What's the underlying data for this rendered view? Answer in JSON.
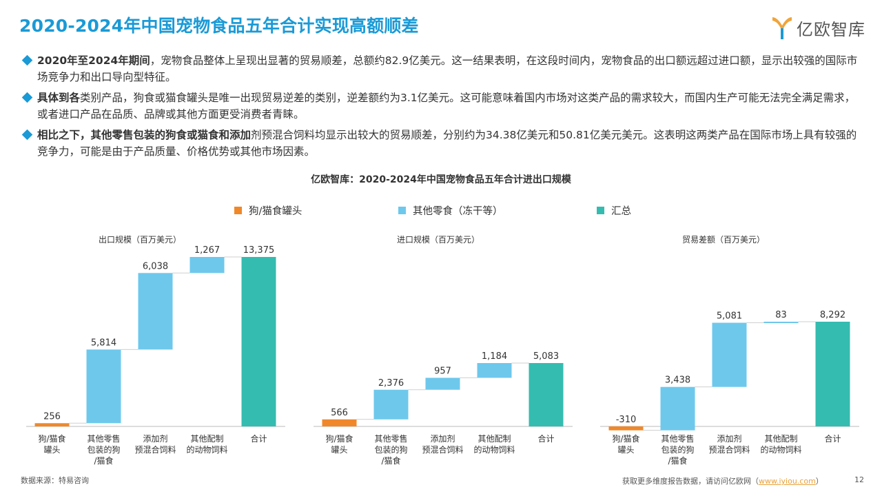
{
  "header": {
    "title": "2020-2024年中国宠物食品五年合计实现高额顺差"
  },
  "logo": {
    "text": "亿欧智库",
    "icon": "yiou-logo-icon"
  },
  "bullets": [
    {
      "bold": "2020年至2024年期间",
      "text": "，宠物食品整体上呈现出显著的贸易顺差，总额约82.9亿美元。这一结果表明，在这段时间内，宠物食品的出口额远超过进口额，显示出较强的国际市场竞争力和出口导向型特征。"
    },
    {
      "bold": "具体到各",
      "text": "类别产品，狗食或猫食罐头是唯一出现贸易逆差的类别，逆差额约为3.1亿美元。这可能意味着国内市场对这类产品的需求较大，而国内生产可能无法完全满足需求，或者进口产品在品质、品牌或其他方面更受消费者青睐。"
    },
    {
      "bold": "相比之下，其他零售包装的狗食或猫食和添加",
      "text": "剂预混合饲料均显示出较大的贸易顺差，分别约为34.38亿美元和50.81亿美元美元。这表明这两类产品在国际市场上具有较强的竞争力，可能是由于产品质量、价格优势或其他市场因素。"
    }
  ],
  "chart_title": "亿欧智库：2020-2024年中国宠物食品五年合计进出口规模",
  "legend": [
    {
      "label": "狗/猫食罐头",
      "color": "#f0882a"
    },
    {
      "label": "其他零食（冻干等）",
      "color": "#6ec8ec"
    },
    {
      "label": "汇总",
      "color": "#35bcb0"
    }
  ],
  "chart_data": [
    {
      "type": "waterfall",
      "title": "出口规模（百万美元）",
      "categories": [
        "狗/猫食罐头",
        "其他零售包装的狗/猫食",
        "添加剂预混合饲料",
        "其他配制的动物饲料",
        "合计"
      ],
      "values": [
        256,
        5814,
        6038,
        1267,
        13375
      ],
      "value_labels": [
        "256",
        "5,814",
        "6,038",
        "1,267",
        "13,375"
      ],
      "ylim": [
        -400,
        13400
      ],
      "grid": false
    },
    {
      "type": "waterfall",
      "title": "进口规模（百万美元）",
      "categories": [
        "狗/猫食罐头",
        "其他零售包装的狗/猫食",
        "添加剂预混合饲料",
        "其他配制的动物饲料",
        "合计"
      ],
      "values": [
        566,
        2376,
        957,
        1184,
        5083
      ],
      "value_labels": [
        "566",
        "2,376",
        "957",
        "1,184",
        "5,083"
      ],
      "ylim": [
        -200,
        5083
      ],
      "grid": false
    },
    {
      "type": "waterfall",
      "title": "贸易差额（百万美元）",
      "categories": [
        "狗/猫食罐头",
        "其他零售包装的狗/猫食",
        "添加剂预混合饲料",
        "其他配制的动物饲料",
        "合计"
      ],
      "values": [
        -310,
        3438,
        5081,
        83,
        8292
      ],
      "value_labels": [
        "-310",
        "3,438",
        "5,081",
        "83",
        "8,292"
      ],
      "ylim": [
        -310,
        8292
      ],
      "grid": false
    }
  ],
  "footer": {
    "source": "数据来源：特易咨询",
    "more_prefix": "获取更多维度报告数据，请访问亿欧网（",
    "link": "www.iyiou.com",
    "more_suffix": "）",
    "page": "12"
  }
}
